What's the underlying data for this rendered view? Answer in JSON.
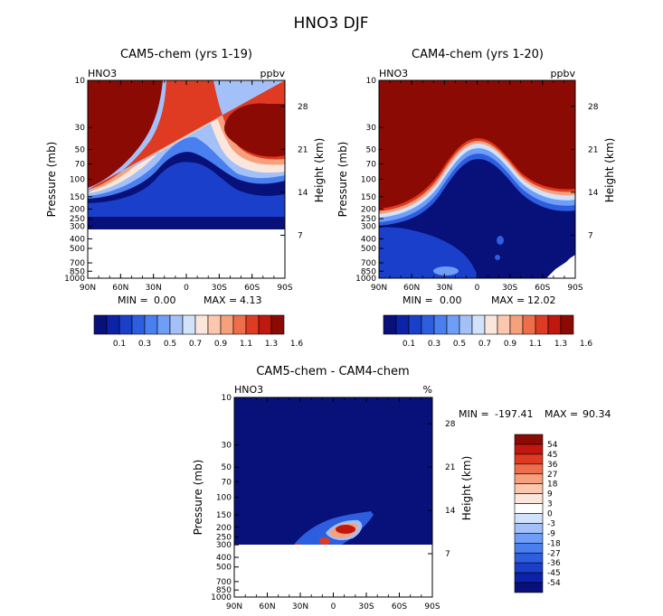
{
  "title": "HNO3 DJF",
  "palette": {
    "background": "#ffffff",
    "frame": "#000000",
    "colorbar": [
      "#08107a",
      "#0c22a8",
      "#1a3fcb",
      "#2e5ee0",
      "#4a7ff0",
      "#6f9ef8",
      "#a3c0f8",
      "#d2e2fa",
      "#fbe6dc",
      "#fbc8ad",
      "#f6a07c",
      "#ee6e4c",
      "#de3b22",
      "#c0180f",
      "#8c0a04"
    ]
  },
  "chart_data": [
    {
      "id": "cam5",
      "type": "contour",
      "title": "CAM5-chem (yrs 1-19)",
      "variable": "HNO3",
      "units": "ppbv",
      "xlabel": "",
      "ylabel": "Pressure (mb)",
      "ylabel_right": "Height (km)",
      "x_ticks": [
        "90N",
        "60N",
        "30N",
        "0",
        "30S",
        "60S",
        "90S"
      ],
      "y_ticks": [
        "10",
        "30",
        "50",
        "70",
        "100",
        "150",
        "200",
        "250",
        "300",
        "400",
        "500",
        "700",
        "850",
        "1000"
      ],
      "height_ticks": [
        "28",
        "21",
        "14",
        "7"
      ],
      "stats": {
        "min_label": "MIN =",
        "min": "0.00",
        "max_label": "MAX =",
        "max": "4.13"
      },
      "colorbar_labels": [
        "0.1",
        "0.3",
        "0.5",
        "0.7",
        "0.9",
        "1.1",
        "1.3",
        "1.6"
      ],
      "ylim_mb": [
        1000,
        10
      ]
    },
    {
      "id": "cam4",
      "type": "contour",
      "title": "CAM4-chem (yrs 1-20)",
      "variable": "HNO3",
      "units": "ppbv",
      "xlabel": "",
      "ylabel": "Pressure (mb)",
      "ylabel_right": "Height (km)",
      "x_ticks": [
        "90N",
        "60N",
        "30N",
        "0",
        "30S",
        "60S",
        "90S"
      ],
      "y_ticks": [
        "10",
        "30",
        "50",
        "70",
        "100",
        "150",
        "200",
        "250",
        "300",
        "400",
        "500",
        "700",
        "850",
        "1000"
      ],
      "height_ticks": [
        "28",
        "21",
        "14",
        "7"
      ],
      "stats": {
        "min_label": "MIN =",
        "min": "0.00",
        "max_label": "MAX =",
        "max": "12.02"
      },
      "colorbar_labels": [
        "0.1",
        "0.3",
        "0.5",
        "0.7",
        "0.9",
        "1.1",
        "1.3",
        "1.6"
      ],
      "ylim_mb": [
        1000,
        10
      ]
    },
    {
      "id": "diff",
      "type": "contour",
      "title": "CAM5-chem - CAM4-chem",
      "variable": "HNO3",
      "units": "%",
      "xlabel": "",
      "ylabel": "Pressure (mb)",
      "ylabel_right": "Height (km)",
      "x_ticks": [
        "90N",
        "60N",
        "30N",
        "0",
        "30S",
        "60S",
        "90S"
      ],
      "y_ticks": [
        "10",
        "30",
        "50",
        "70",
        "100",
        "150",
        "200",
        "250",
        "300",
        "400",
        "500",
        "700",
        "850",
        "1000"
      ],
      "height_ticks": [
        "28",
        "21",
        "14",
        "7"
      ],
      "stats": {
        "min_label": "MIN =",
        "min": "-197.41",
        "max_label": "MAX =",
        "max": "90.34"
      },
      "colorbar_labels": [
        "54",
        "45",
        "36",
        "27",
        "18",
        "9",
        "3",
        "0",
        "-3",
        "-9",
        "-18",
        "-27",
        "-36",
        "-45",
        "-54"
      ],
      "ylim_mb": [
        1000,
        10
      ]
    }
  ]
}
